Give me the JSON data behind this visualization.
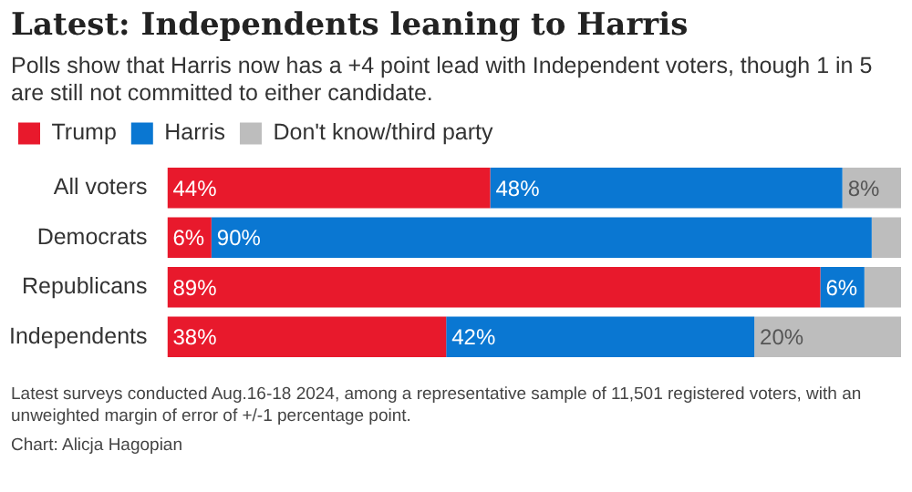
{
  "chart_data": {
    "type": "bar",
    "orientation": "horizontal",
    "stacked": true,
    "title": "Latest: Independents leaning to Harris",
    "subtitle": "Polls show that Harris now has a +4 point lead with Independent voters, though 1 in 5 are still not committed to either candidate.",
    "categories": [
      "All voters",
      "Democrats",
      "Republicans",
      "Independents"
    ],
    "series": [
      {
        "name": "Trump",
        "color": "#e8192c",
        "values": [
          44,
          6,
          89,
          38
        ],
        "value_labels": [
          "44%",
          "6%",
          "89%",
          "38%"
        ]
      },
      {
        "name": "Harris",
        "color": "#0a77d2",
        "values": [
          48,
          90,
          6,
          42
        ],
        "value_labels": [
          "48%",
          "90%",
          "6%",
          "42%"
        ]
      },
      {
        "name": "Don't know/third party",
        "color": "#bdbdbd",
        "values": [
          8,
          4,
          5,
          20
        ],
        "value_labels": [
          "8%",
          null,
          null,
          "20%"
        ]
      }
    ],
    "xlim": [
      0,
      100
    ],
    "tick_labels": "y",
    "grid": false,
    "legend": "top left",
    "annotations": [
      "Latest surveys conducted Aug.16-18 2024, among a representative sample of 11,501 registered voters, with an unweighted margin of error of +/-1 percentage point.",
      "Chart: Alicja Hagopian"
    ]
  }
}
